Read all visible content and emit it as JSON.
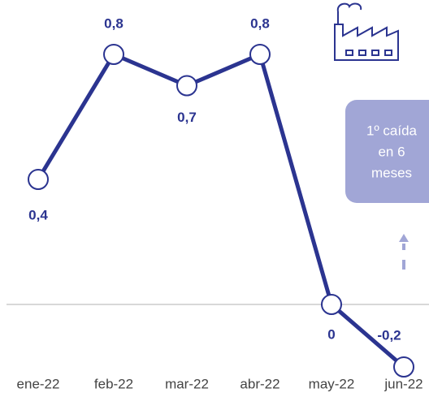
{
  "chart_data": {
    "type": "line",
    "categories": [
      "ene-22",
      "feb-22",
      "mar-22",
      "abr-22",
      "may-22",
      "jun-22"
    ],
    "series": [
      {
        "color": "#2b3490",
        "values": [
          0.4,
          0.8,
          0.7,
          0.8,
          0,
          -0.2
        ],
        "value_labels": [
          "0,4",
          "0,8",
          "0,7",
          "0,8",
          "0",
          "-0,2"
        ]
      }
    ],
    "ylim": [
      -0.2,
      0.8
    ],
    "annotation": [
      "1º caída",
      "en 6",
      "meses"
    ]
  }
}
